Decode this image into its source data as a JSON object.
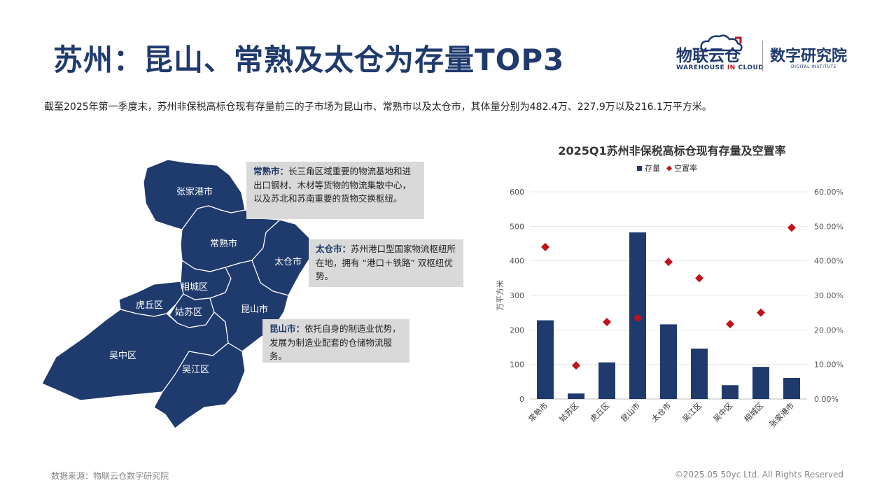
{
  "header": {
    "title": "苏州：昆山、常熟及太仓为存量TOP3",
    "logo_left_cn": "物联云仓",
    "logo_left_en_a": "WAREHOUSE",
    "logo_left_en_b": "IN",
    "logo_left_en_c": "CLOUD",
    "logo_right_cn": "数字研究院",
    "logo_right_en": "DIGITAL INSTITUTE"
  },
  "summary": "截至2025年第一季度末，苏州非保税高标仓现有存量前三的子市场为昆山市、常熟市以及太仓市，其体量分别为482.4万、227.9万以及216.1万平方米。",
  "map": {
    "regions": [
      "张家港市",
      "常熟市",
      "太仓市",
      "相城区",
      "虎丘区",
      "姑苏区",
      "昆山市",
      "吴中区",
      "吴江区"
    ],
    "fill_color": "#1f3a6d"
  },
  "callouts": [
    {
      "name": "常熟市：",
      "text": "长三角区域重要的物流基地和进出口钢材、木材等货物的物流集散中心，以及苏北和苏南重要的货物交换枢纽。"
    },
    {
      "name": "太仓市：",
      "text": "苏州港口型国家物流枢纽所在地，拥有 “港口＋铁路” 双枢纽优势。"
    },
    {
      "name": "昆山市：",
      "text": "依托自身的制造业优势，发展为制造业配套的仓储物流服务。"
    }
  ],
  "chart_data": {
    "type": "bar",
    "title": "2025Q1苏州非保税高标仓现有存量及空置率",
    "categories": [
      "常熟市",
      "姑苏区",
      "虎丘区",
      "昆山市",
      "太仓市",
      "吴江区",
      "吴中区",
      "相城区",
      "张家港市"
    ],
    "series": [
      {
        "name": "存量",
        "kind": "bar",
        "axis": "left",
        "color": "#1f3a6d",
        "values": [
          227.9,
          16,
          106,
          482.4,
          216.1,
          146,
          40,
          93,
          61
        ]
      },
      {
        "name": "空置率",
        "kind": "scatter",
        "axis": "right",
        "color": "#c0121b",
        "marker": "diamond",
        "values": [
          44.0,
          9.7,
          22.3,
          23.5,
          39.7,
          35.0,
          21.7,
          25.0,
          49.6
        ]
      }
    ],
    "ylabel": "万平方米",
    "ylim": [
      0,
      600
    ],
    "yticks": [
      "0",
      "100",
      "200",
      "300",
      "400",
      "500",
      "600"
    ],
    "y2lim": [
      0,
      60
    ],
    "y2ticks": [
      "0.00%",
      "10.00%",
      "20.00%",
      "30.00%",
      "40.00%",
      "50.00%",
      "60.00%"
    ],
    "legend": "top-center",
    "grid": true
  },
  "footer": {
    "source": "数据来源：物联云仓数字研究院",
    "copyright": "©2025.05 50yc Ltd. All Rights Reserved"
  }
}
